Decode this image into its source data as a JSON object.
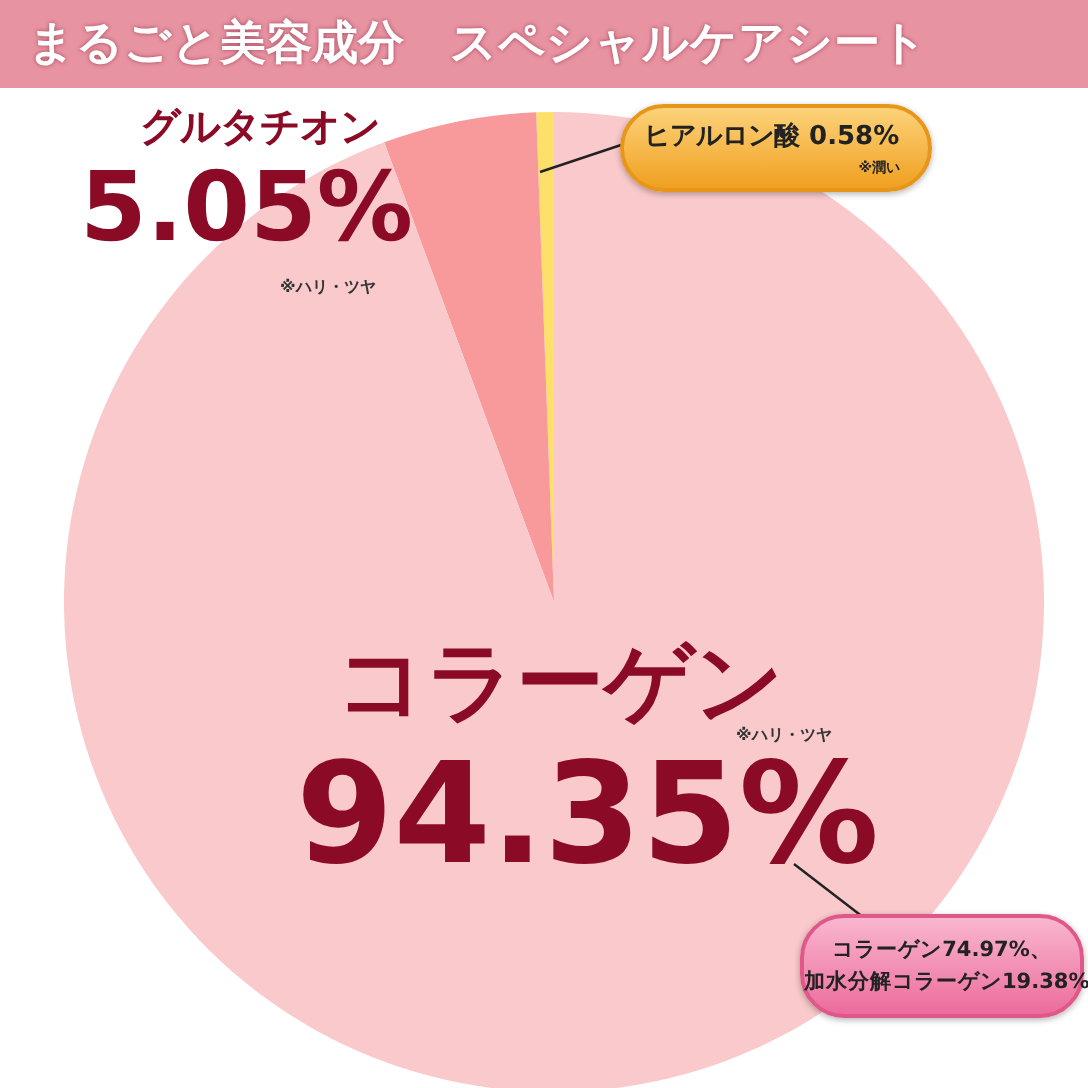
{
  "chart_data": {
    "type": "pie",
    "title": "まるごと美容成分　スペシャルケアシート",
    "categories": [
      "ヒアルロン酸",
      "グルタチオン",
      "コラーゲン"
    ],
    "values": [
      0.58,
      5.05,
      94.35
    ],
    "colors": [
      "#fde06a",
      "#f89a9c",
      "#f9c9cb"
    ],
    "value_labels": [
      "0.58%",
      "5.05%",
      "94.35%"
    ],
    "annotations": [
      "※潤い",
      "※ハリ・ツヤ",
      "※ハリ・ツヤ",
      "コラーゲン74.97%、加水分解コラーゲン19.38%"
    ],
    "legend": false
  }
}
